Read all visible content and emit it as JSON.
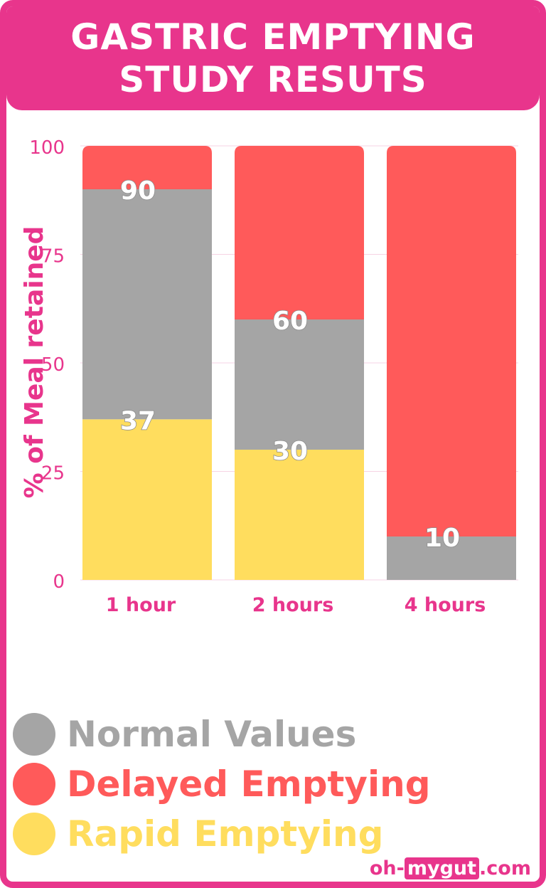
{
  "title_lines": [
    "GASTRIC EMPTYING",
    "STUDY RESUTS"
  ],
  "colors": {
    "accent": "#e8358c",
    "normal": "#a5a5a5",
    "delayed": "#ff5a5a",
    "rapid": "#ffdd5e"
  },
  "chart_data": {
    "type": "bar",
    "stacked": true,
    "categories": [
      "1 hour",
      "2 hours",
      "4 hours"
    ],
    "ylabel": "% of Meal retained",
    "ylim": [
      0,
      100
    ],
    "yticks": [
      "100",
      "75",
      "50",
      "25",
      "0"
    ],
    "grid": true,
    "series": [
      {
        "name": "Rapid Emptying",
        "color": "#ffdd5e",
        "ranges": [
          [
            0,
            37
          ],
          [
            0,
            30
          ],
          [
            0,
            0
          ]
        ]
      },
      {
        "name": "Normal Values",
        "color": "#a5a5a5",
        "ranges": [
          [
            37,
            90
          ],
          [
            30,
            60
          ],
          [
            0,
            10
          ]
        ]
      },
      {
        "name": "Delayed Emptying",
        "color": "#ff5a5a",
        "ranges": [
          [
            90,
            100
          ],
          [
            60,
            100
          ],
          [
            10,
            100
          ]
        ]
      }
    ],
    "data_labels": [
      {
        "category": "1 hour",
        "text": "90",
        "value": 90
      },
      {
        "category": "1 hour",
        "text": "37",
        "value": 37
      },
      {
        "category": "2 hours",
        "text": "60",
        "value": 60
      },
      {
        "category": "2 hours",
        "text": "30",
        "value": 30
      },
      {
        "category": "4 hours",
        "text": "10",
        "value": 10
      }
    ]
  },
  "legend": [
    {
      "label": "Normal Values",
      "color": "#a5a5a5"
    },
    {
      "label": "Delayed Emptying",
      "color": "#ff5a5a"
    },
    {
      "label": "Rapid Emptying",
      "color": "#ffdd5e"
    }
  ],
  "brand": {
    "prefix": "oh-",
    "highlight": "mygut",
    "suffix": ".com"
  }
}
